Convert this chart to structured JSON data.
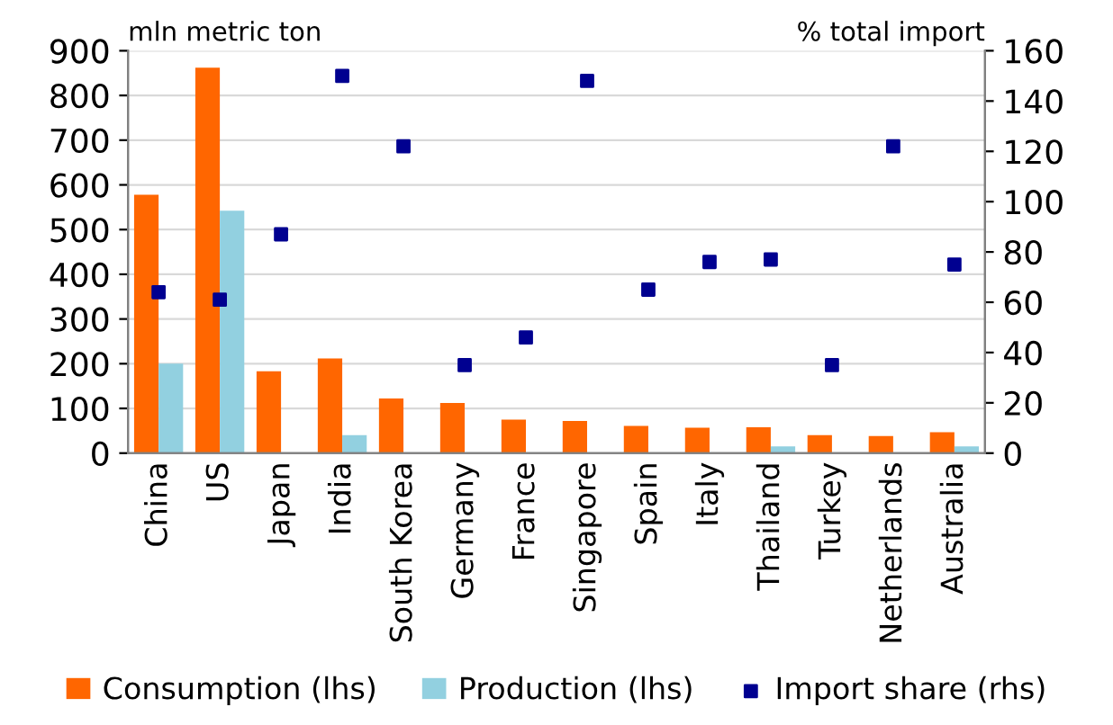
{
  "chart_data": {
    "type": "bar",
    "categories": [
      "China",
      "US",
      "Japan",
      "India",
      "South Korea",
      "Germany",
      "France",
      "Singapore",
      "Spain",
      "Italy",
      "Thailand",
      "Turkey",
      "Netherlands",
      "Australia"
    ],
    "ylabel": "mln metric ton",
    "y2label": "% total import",
    "ylim": [
      0,
      900
    ],
    "yticks": [
      0,
      100,
      200,
      300,
      400,
      500,
      600,
      700,
      800,
      900
    ],
    "y2lim": [
      0,
      160
    ],
    "y2ticks": [
      0,
      20,
      40,
      60,
      80,
      100,
      120,
      140,
      160
    ],
    "grid": "y",
    "legend": "bottom",
    "series": [
      {
        "name": "Consumption (lhs)",
        "color": "#ff6600",
        "values": [
          578,
          862,
          183,
          212,
          122,
          112,
          75,
          72,
          61,
          57,
          58,
          40,
          38,
          47
        ]
      },
      {
        "name": "Production (lhs)",
        "color": "#92d0e0",
        "values": [
          200,
          542,
          0,
          40,
          0,
          0,
          0,
          0,
          0,
          0,
          15,
          0,
          0,
          15
        ]
      },
      {
        "name": "Import share (rhs)",
        "type": "scatter",
        "axis": "y2",
        "marker": "square",
        "color": "#000090",
        "values": [
          64,
          61,
          87,
          150,
          122,
          35,
          46,
          148,
          65,
          76,
          77,
          35,
          122,
          75
        ]
      }
    ]
  }
}
